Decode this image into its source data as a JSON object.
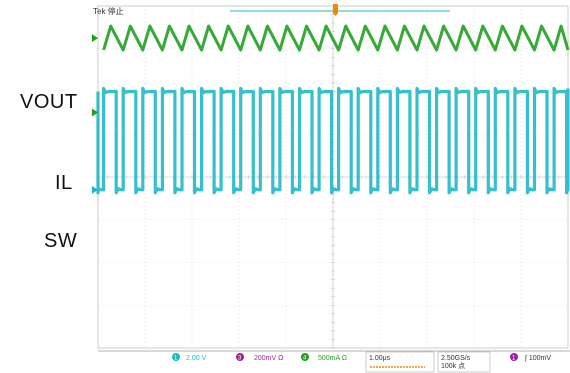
{
  "header": {
    "mode_text": "Tek 停止"
  },
  "chart_data": {
    "type": "line",
    "title": "",
    "xlabel": "",
    "ylabel": "",
    "grid": true,
    "x_divisions": 10,
    "y_divisions": 8,
    "time_per_div_us": 1.0,
    "switching_frequency_MHz": 2.4,
    "series": [
      {
        "name": "VOUT",
        "channel": "3",
        "color": "#a020a0",
        "waveform": "ripple",
        "level_div": 5.1,
        "amplitude_div": 0.12,
        "spike_div": 0.35
      },
      {
        "name": "IL",
        "channel": "4",
        "color": "#20a020",
        "waveform": "triangle",
        "level_div": 3.25,
        "amplitude_div": 0.28
      },
      {
        "name": "SW",
        "channel": "1",
        "color": "#20b8c8",
        "waveform": "square",
        "high_div": 2.0,
        "low_div": -0.3,
        "duty": 0.36
      }
    ]
  },
  "status_bar": {
    "ch1": {
      "num": "1",
      "scale": "2.00 V",
      "color": "#20b8c8"
    },
    "ch3": {
      "num": "3",
      "scale": "200mV Ω",
      "color": "#a020a0"
    },
    "ch4": {
      "num": "4",
      "scale": "500mA Ω",
      "color": "#20a020"
    },
    "timebase": "1.00μs",
    "sample_rate": "2.50GS/s",
    "record": "100k 点",
    "trigger": {
      "num": "1",
      "text": "∫ 100mV",
      "color": "#a020a0"
    }
  }
}
